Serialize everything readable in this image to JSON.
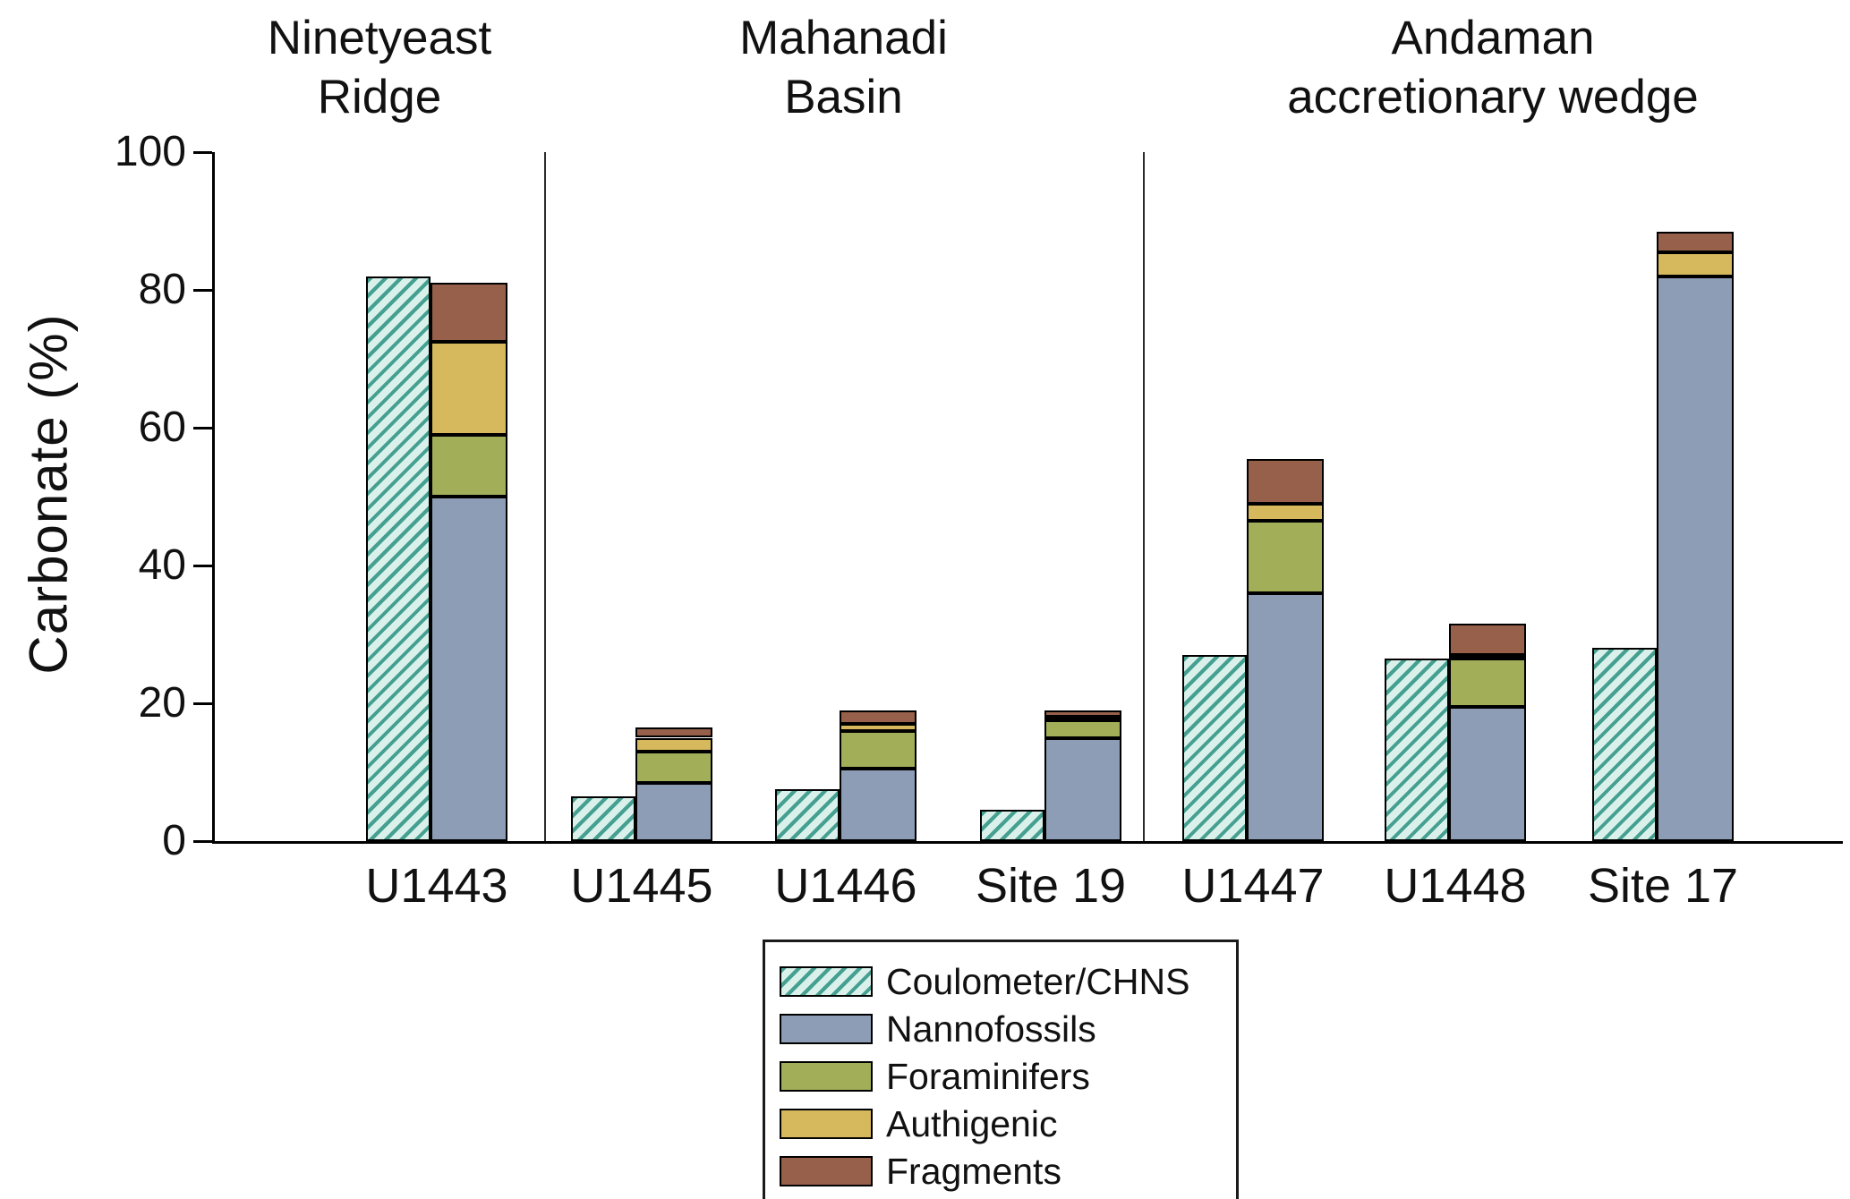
{
  "chart_data": {
    "type": "bar",
    "stacked": true,
    "title": "",
    "ylabel": "Carbonate (%)",
    "xlabel": "",
    "ylim": [
      0,
      100
    ],
    "yticks": [
      0,
      20,
      40,
      60,
      80,
      100
    ],
    "grid": false,
    "legend_position": "bottom-center",
    "regions": [
      {
        "title": "Ninetyeast\nRidge",
        "sites": [
          "U1443"
        ]
      },
      {
        "title": "Mahanadi\nBasin",
        "sites": [
          "U1445",
          "U1446",
          "Site 19"
        ]
      },
      {
        "title": "Andaman\naccretionary wedge",
        "sites": [
          "U1447",
          "U1448",
          "Site 17"
        ]
      }
    ],
    "stack_order_bottom_to_top": [
      "nannofossils",
      "foraminifers",
      "authigenic",
      "fragments"
    ],
    "sites": [
      {
        "label": "U1443",
        "coulometer_chns": 82,
        "stack": {
          "nannofossils": 50,
          "foraminifers": 9,
          "authigenic": 13.5,
          "fragments": 8.5
        }
      },
      {
        "label": "U1445",
        "coulometer_chns": 6.5,
        "stack": {
          "nannofossils": 8.5,
          "foraminifers": 4.5,
          "authigenic": 2,
          "fragments": 1.5
        }
      },
      {
        "label": "U1446",
        "coulometer_chns": 7.5,
        "stack": {
          "nannofossils": 10.5,
          "foraminifers": 5.5,
          "authigenic": 1,
          "fragments": 2
        }
      },
      {
        "label": "Site 19",
        "coulometer_chns": 4.5,
        "stack": {
          "nannofossils": 15,
          "foraminifers": 2.5,
          "authigenic": 0.5,
          "fragments": 1
        }
      },
      {
        "label": "U1447",
        "coulometer_chns": 27,
        "stack": {
          "nannofossils": 36,
          "foraminifers": 10.5,
          "authigenic": 2.5,
          "fragments": 6.5
        }
      },
      {
        "label": "U1448",
        "coulometer_chns": 26.5,
        "stack": {
          "nannofossils": 19.5,
          "foraminifers": 7,
          "authigenic": 0.5,
          "fragments": 4.5
        }
      },
      {
        "label": "Site 17",
        "coulometer_chns": 28,
        "stack": {
          "nannofossils": 82,
          "foraminifers": 0,
          "authigenic": 3.5,
          "fragments": 3
        }
      }
    ],
    "legend": [
      {
        "key": "coulometer",
        "label": "Coulometer/CHNS",
        "hatch": true,
        "color": "#45a091",
        "bg": "#d9f1ea"
      },
      {
        "key": "nannofossils",
        "label": "Nannofossils",
        "hatch": false,
        "color": "#8c9db5"
      },
      {
        "key": "foraminifers",
        "label": "Foraminifers",
        "hatch": false,
        "color": "#a2af58"
      },
      {
        "key": "authigenic",
        "label": "Authigenic",
        "hatch": false,
        "color": "#d6b95c"
      },
      {
        "key": "fragments",
        "label": "Fragments",
        "hatch": false,
        "color": "#96604a"
      }
    ]
  }
}
